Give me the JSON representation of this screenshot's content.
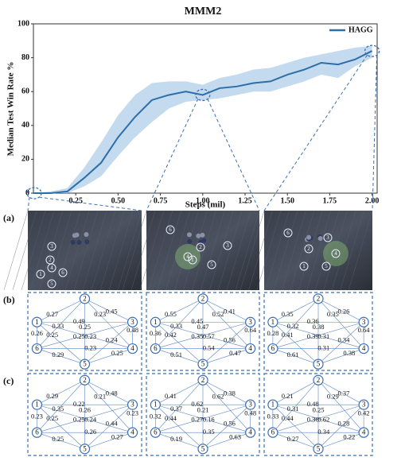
{
  "chart_data": {
    "type": "line",
    "title": "MMM2",
    "xlabel": "Steps (mil)",
    "ylabel": "Median Test Win Rate %",
    "x": [
      0,
      0.1,
      0.2,
      0.3,
      0.4,
      0.5,
      0.6,
      0.7,
      0.8,
      0.9,
      1.0,
      1.1,
      1.2,
      1.3,
      1.4,
      1.5,
      1.6,
      1.7,
      1.8,
      1.9,
      2.0
    ],
    "series": [
      {
        "name": "HAGG",
        "color": "#2c6fa8",
        "values": [
          0,
          0,
          1,
          9,
          18,
          33,
          45,
          55,
          58,
          60,
          58,
          62,
          63,
          65,
          66,
          70,
          73,
          77,
          76,
          79,
          84
        ],
        "lower": [
          0,
          0,
          0,
          4,
          10,
          22,
          33,
          42,
          50,
          54,
          55,
          56,
          58,
          60,
          60,
          63,
          66,
          70,
          68,
          75,
          80
        ],
        "upper": [
          0,
          1,
          3,
          15,
          30,
          46,
          58,
          65,
          66,
          66,
          64,
          68,
          70,
          73,
          74,
          77,
          80,
          82,
          84,
          86,
          87
        ],
        "band_color": "#b9d4ec"
      }
    ],
    "xlim": [
      0,
      2.03
    ],
    "ylim": [
      0,
      100
    ],
    "xticks": [
      0.25,
      {
        "value": 0.5,
        "label": "0.50"
      },
      0.75,
      {
        "value": 1,
        "label": "1.00"
      },
      1.25,
      {
        "value": 1.5,
        "label": "1.50"
      },
      1.75,
      {
        "value": 2,
        "label": "2.00"
      }
    ],
    "yticks": [
      0,
      20,
      40,
      60,
      80,
      100
    ],
    "legend": "upper right"
  },
  "panels": {
    "labels": [
      "(a)",
      "(b)",
      "(c)"
    ]
  },
  "node_labels": [
    "1",
    "2",
    "3",
    "4",
    "5",
    "6"
  ],
  "graphs": {
    "b": [
      [
        0.27,
        0.49,
        0.23,
        0.25,
        0.26,
        0.45,
        0.23,
        0.25,
        0.33,
        0.48,
        0.24,
        0.25,
        0.25,
        0.23,
        0.29
      ],
      [
        0.55,
        0.45,
        0.57,
        0.42,
        0.36,
        0.41,
        0.52,
        0.47,
        0.33,
        0.64,
        0.56,
        0.35,
        0.47,
        0.54,
        0.51
      ],
      [
        0.35,
        0.36,
        0.31,
        0.41,
        0.28,
        0.26,
        0.35,
        0.38,
        0.32,
        0.64,
        0.34,
        0.39,
        0.38,
        0.31,
        0.61
      ]
    ],
    "c": [
      [
        0.29,
        0.22,
        0.24,
        0.25,
        0.23,
        0.48,
        0.21,
        0.26,
        0.35,
        0.23,
        0.44,
        0.25,
        0.27,
        0.26,
        0.25
      ],
      [
        0.41,
        0.62,
        0.16,
        0.44,
        0.32,
        0.38,
        0.62,
        0.21,
        0.37,
        0.48,
        0.56,
        0.27,
        0.63,
        0.35,
        0.19
      ],
      [
        0.21,
        0.48,
        0.62,
        0.44,
        0.33,
        0.37,
        0.29,
        0.25,
        0.31,
        0.42,
        0.28,
        0.36,
        0.22,
        0.34,
        0.27
      ]
    ]
  }
}
